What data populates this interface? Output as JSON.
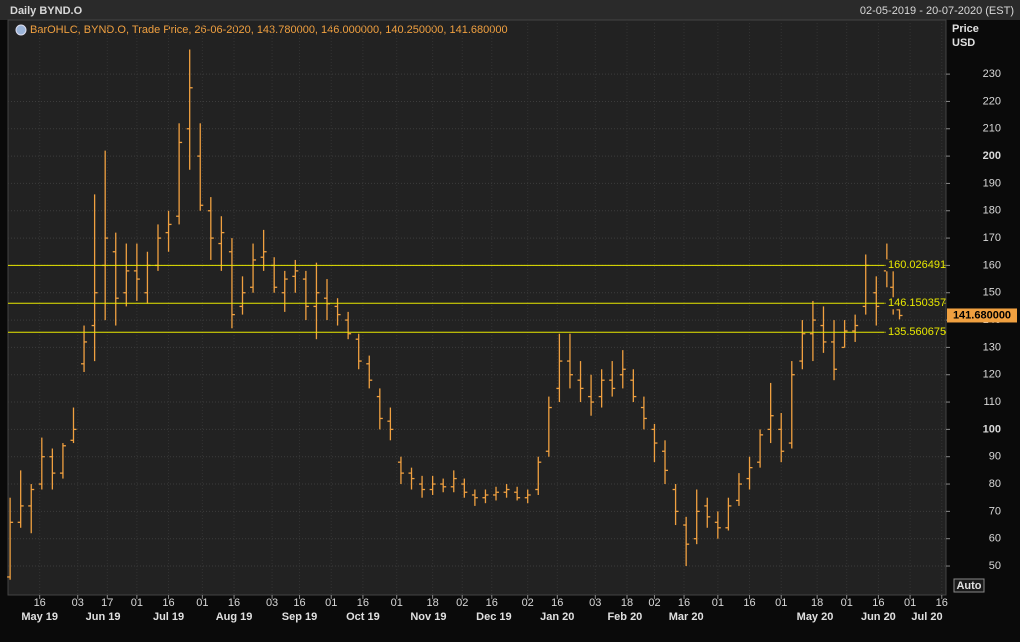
{
  "chart_data": {
    "type": "ohlc",
    "title": "Daily BYND.O",
    "date_range": "02-05-2019 - 20-07-2020 (EST)",
    "legend": "BarOHLC, BYND.O, Trade Price, 26-06-2020, 143.780000, 146.000000, 140.250000, 141.680000",
    "y_label": "Price",
    "y_unit": "USD",
    "button": "Auto",
    "color": "#f0a040",
    "level_color": "#e8e800",
    "grid": true,
    "xlim": [
      "2019-05-01",
      "2020-07-18"
    ],
    "ylim": [
      39.4,
      249.8
    ],
    "yticks": [
      50,
      60,
      70,
      80,
      90,
      100,
      110,
      120,
      130,
      140,
      150,
      160,
      170,
      180,
      190,
      200,
      210,
      220,
      230
    ],
    "xticks": [
      {
        "value": "2019-05-16",
        "label": "16"
      },
      {
        "value": "2019-06-03",
        "label": "03"
      },
      {
        "value": "2019-06-17",
        "label": "17"
      },
      {
        "value": "2019-07-01",
        "label": "01"
      },
      {
        "value": "2019-07-16",
        "label": "16"
      },
      {
        "value": "2019-08-01",
        "label": "01"
      },
      {
        "value": "2019-08-16",
        "label": "16"
      },
      {
        "value": "2019-09-03",
        "label": "03"
      },
      {
        "value": "2019-09-16",
        "label": "16"
      },
      {
        "value": "2019-10-01",
        "label": "01"
      },
      {
        "value": "2019-10-16",
        "label": "16"
      },
      {
        "value": "2019-11-01",
        "label": "01"
      },
      {
        "value": "2019-11-18",
        "label": "18"
      },
      {
        "value": "2019-12-02",
        "label": "02"
      },
      {
        "value": "2019-12-16",
        "label": "16"
      },
      {
        "value": "2020-01-02",
        "label": "02"
      },
      {
        "value": "2020-01-16",
        "label": "16"
      },
      {
        "value": "2020-02-03",
        "label": "03"
      },
      {
        "value": "2020-02-18",
        "label": "18"
      },
      {
        "value": "2020-03-02",
        "label": "02"
      },
      {
        "value": "2020-03-16",
        "label": "16"
      },
      {
        "value": "2020-04-01",
        "label": "01"
      },
      {
        "value": "2020-04-16",
        "label": "16"
      },
      {
        "value": "2020-05-01",
        "label": "01"
      },
      {
        "value": "2020-05-18",
        "label": "18"
      },
      {
        "value": "2020-06-01",
        "label": "01"
      },
      {
        "value": "2020-06-16",
        "label": "16"
      },
      {
        "value": "2020-07-01",
        "label": "01"
      },
      {
        "value": "2020-07-16",
        "label": "16"
      }
    ],
    "month_labels": [
      {
        "value": "2019-05-16",
        "label": "May 19"
      },
      {
        "value": "2019-06-15",
        "label": "Jun 19"
      },
      {
        "value": "2019-07-16",
        "label": "Jul 19"
      },
      {
        "value": "2019-08-16",
        "label": "Aug 19"
      },
      {
        "value": "2019-09-16",
        "label": "Sep 19"
      },
      {
        "value": "2019-10-16",
        "label": "Oct 19"
      },
      {
        "value": "2019-11-16",
        "label": "Nov 19"
      },
      {
        "value": "2019-12-17",
        "label": "Dec 19"
      },
      {
        "value": "2020-01-16",
        "label": "Jan 20"
      },
      {
        "value": "2020-02-17",
        "label": "Feb 20"
      },
      {
        "value": "2020-03-17",
        "label": "Mar 20"
      },
      {
        "value": "2020-05-17",
        "label": "May 20"
      },
      {
        "value": "2020-06-16",
        "label": "Jun 20"
      },
      {
        "value": "2020-07-09",
        "label": "Jul 20"
      }
    ],
    "levels": [
      160.026491,
      146.150357,
      135.560675
    ],
    "last_price": {
      "value": 141.68,
      "label": "141.680000"
    },
    "x": [
      "2019-05-02",
      "2019-05-07",
      "2019-05-12",
      "2019-05-17",
      "2019-05-22",
      "2019-05-27",
      "2019-06-01",
      "2019-06-06",
      "2019-06-11",
      "2019-06-16",
      "2019-06-21",
      "2019-06-26",
      "2019-07-01",
      "2019-07-06",
      "2019-07-11",
      "2019-07-16",
      "2019-07-21",
      "2019-07-26",
      "2019-07-31",
      "2019-08-05",
      "2019-08-10",
      "2019-08-15",
      "2019-08-20",
      "2019-08-25",
      "2019-08-30",
      "2019-09-04",
      "2019-09-09",
      "2019-09-14",
      "2019-09-19",
      "2019-09-24",
      "2019-09-29",
      "2019-10-04",
      "2019-10-09",
      "2019-10-14",
      "2019-10-19",
      "2019-10-24",
      "2019-10-29",
      "2019-11-03",
      "2019-11-08",
      "2019-11-13",
      "2019-11-18",
      "2019-11-23",
      "2019-11-28",
      "2019-12-03",
      "2019-12-08",
      "2019-12-13",
      "2019-12-18",
      "2019-12-23",
      "2019-12-28",
      "2020-01-02",
      "2020-01-07",
      "2020-01-12",
      "2020-01-17",
      "2020-01-22",
      "2020-01-27",
      "2020-02-01",
      "2020-02-06",
      "2020-02-11",
      "2020-02-16",
      "2020-02-21",
      "2020-02-26",
      "2020-03-02",
      "2020-03-07",
      "2020-03-12",
      "2020-03-17",
      "2020-03-22",
      "2020-03-27",
      "2020-04-01",
      "2020-04-06",
      "2020-04-11",
      "2020-04-16",
      "2020-04-21",
      "2020-04-26",
      "2020-05-01",
      "2020-05-06",
      "2020-05-11",
      "2020-05-16",
      "2020-05-21",
      "2020-05-26",
      "2020-05-31",
      "2020-06-05",
      "2020-06-10",
      "2020-06-15",
      "2020-06-20",
      "2020-06-23",
      "2020-06-26"
    ],
    "open": [
      46,
      66,
      72,
      80,
      90,
      84,
      96,
      124,
      138,
      160,
      165,
      150,
      158,
      150,
      160,
      172,
      178,
      210,
      200,
      180,
      168,
      165,
      145,
      152,
      163,
      160,
      150,
      156,
      155,
      145,
      148,
      145,
      140,
      133,
      124,
      112,
      103,
      88,
      84,
      80,
      78,
      80,
      79,
      80,
      76,
      75,
      76,
      77,
      77,
      75,
      78,
      92,
      115,
      125,
      118,
      112,
      112,
      118,
      120,
      118,
      108,
      100,
      92,
      78,
      65,
      60,
      72,
      66,
      64,
      74,
      82,
      88,
      100,
      100,
      95,
      125,
      135,
      138,
      132,
      130,
      136,
      145,
      150,
      158,
      152,
      143.78
    ],
    "high": [
      75,
      85,
      80,
      97,
      93,
      95,
      108,
      138,
      186,
      202,
      172,
      168,
      168,
      165,
      175,
      180,
      212,
      239,
      212,
      185,
      178,
      170,
      156,
      168,
      173,
      163,
      158,
      162,
      158,
      161,
      155,
      148,
      143,
      135,
      127,
      115,
      108,
      90,
      86,
      83,
      83,
      82,
      85,
      82,
      78,
      78,
      79,
      80,
      79,
      78,
      90,
      112,
      135,
      135,
      125,
      120,
      122,
      125,
      129,
      122,
      112,
      102,
      96,
      80,
      68,
      78,
      75,
      70,
      75,
      84,
      90,
      100,
      117,
      106,
      125,
      140,
      147,
      145,
      140,
      140,
      142,
      164,
      156,
      168,
      160,
      146
    ],
    "low": [
      45,
      64,
      62,
      78,
      78,
      82,
      95,
      121,
      125,
      140,
      138,
      145,
      147,
      146,
      158,
      165,
      175,
      195,
      180,
      162,
      158,
      137,
      142,
      150,
      158,
      150,
      143,
      150,
      140,
      133,
      140,
      138,
      133,
      122,
      115,
      100,
      96,
      80,
      78,
      75,
      76,
      77,
      77,
      75,
      72,
      73,
      74,
      75,
      74,
      73,
      76,
      90,
      110,
      115,
      110,
      105,
      108,
      112,
      115,
      110,
      100,
      88,
      80,
      65,
      50,
      58,
      64,
      60,
      63,
      72,
      78,
      86,
      95,
      88,
      93,
      122,
      125,
      128,
      118,
      130,
      132,
      142,
      138,
      152,
      142,
      140.25
    ],
    "close": [
      66,
      72,
      78,
      90,
      84,
      94,
      100,
      132,
      150,
      170,
      148,
      158,
      155,
      160,
      170,
      175,
      205,
      225,
      182,
      170,
      172,
      142,
      150,
      162,
      165,
      152,
      155,
      158,
      145,
      150,
      146,
      142,
      135,
      125,
      118,
      104,
      100,
      84,
      82,
      78,
      80,
      79,
      82,
      77,
      75,
      76,
      77,
      78,
      75,
      76,
      88,
      108,
      125,
      120,
      115,
      110,
      118,
      115,
      122,
      112,
      104,
      95,
      85,
      70,
      58,
      70,
      68,
      64,
      72,
      80,
      86,
      98,
      105,
      92,
      120,
      135,
      140,
      132,
      122,
      136,
      138,
      160,
      145,
      162,
      146,
      141.68
    ]
  }
}
